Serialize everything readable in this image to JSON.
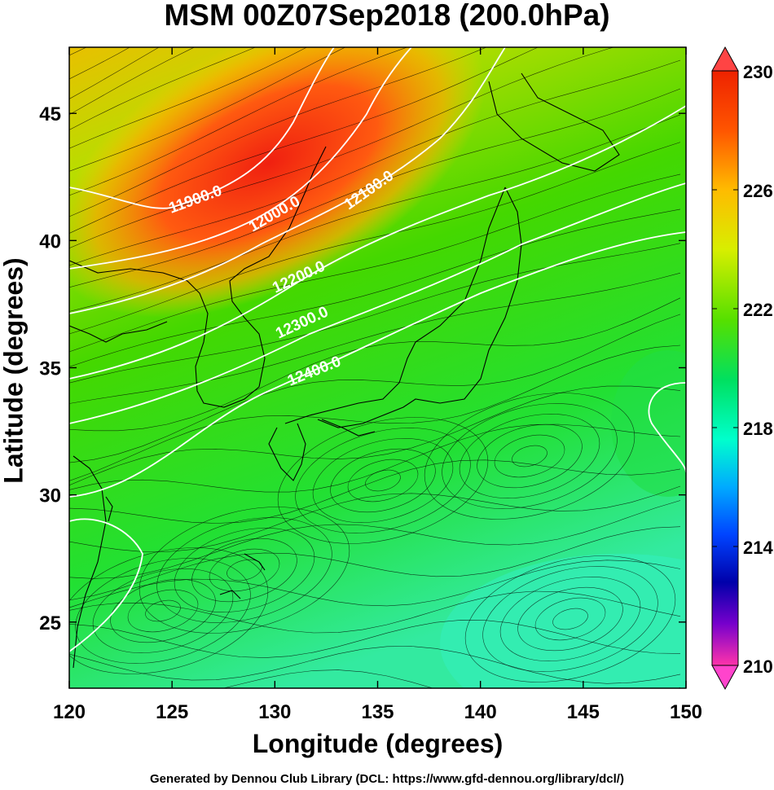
{
  "title": "MSM 00Z07Sep2018 (200.0hPa)",
  "xlabel": "Longitude (degrees)",
  "ylabel": "Latitude  (degrees)",
  "credit": "Generated by Dennou Club Library (DCL: https://www.gfd-dennou.org/library/dcl/)",
  "map": {
    "lon_range": [
      120,
      150
    ],
    "lat_range": [
      22.4,
      47.6
    ],
    "lon_ticks": [
      120,
      125,
      130,
      135,
      140,
      145,
      150
    ],
    "lat_ticks": [
      25,
      30,
      35,
      40,
      45
    ],
    "contour_labels": [
      "11900.0",
      "12000.0",
      "12100.0",
      "12200.0",
      "12300.0",
      "12400.0"
    ],
    "colorbar": {
      "min": 210,
      "max": 230,
      "tick_labels": [
        "230",
        "226",
        "222",
        "218",
        "214",
        "210"
      ],
      "colors": [
        "#ff3399",
        "#cc00cc",
        "#6600cc",
        "#0000cc",
        "#0066ff",
        "#00ccff",
        "#00ffcc",
        "#00ff66",
        "#22dd22",
        "#66e600",
        "#b3e600",
        "#e6e600",
        "#ffcc00",
        "#ff8800",
        "#ff4400",
        "#ee2200"
      ]
    }
  }
}
